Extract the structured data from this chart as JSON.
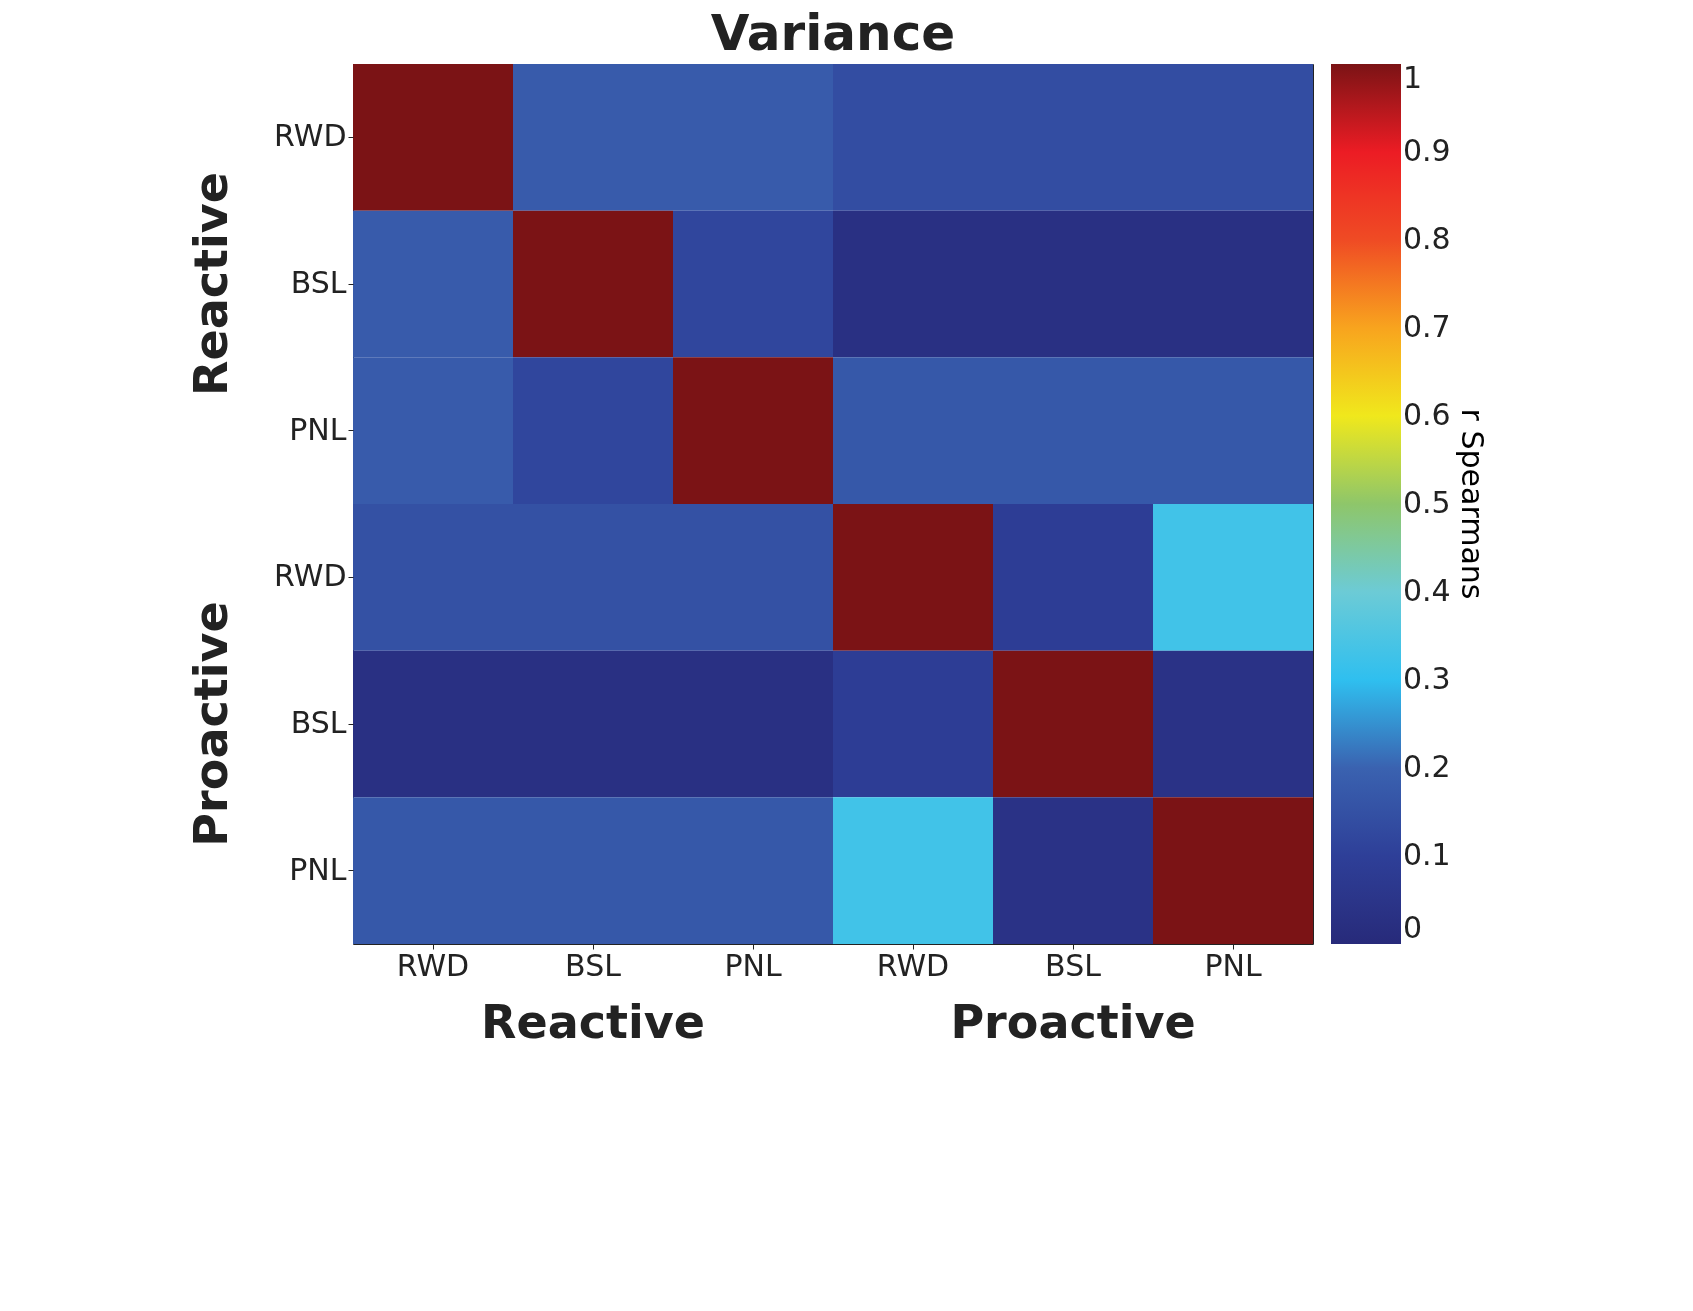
{
  "chart_data": {
    "type": "heatmap",
    "title": "Variance",
    "categories": [
      "RWD",
      "BSL",
      "PNL",
      "RWD",
      "BSL",
      "PNL"
    ],
    "y_categories": [
      "RWD",
      "BSL",
      "PNL",
      "RWD",
      "BSL",
      "PNL"
    ],
    "cells": [
      [
        1,
        0.18,
        0.18,
        0.14,
        0.14,
        0.14
      ],
      [
        0.18,
        1,
        0.12,
        0.03,
        0.03,
        0.03
      ],
      [
        0.18,
        0.12,
        1,
        0.17,
        0.17,
        0.17
      ],
      [
        0.15,
        0.15,
        0.15,
        1,
        0.09,
        0.33
      ],
      [
        0.03,
        0.03,
        0.03,
        0.09,
        1,
        0.04
      ],
      [
        0.17,
        0.17,
        0.17,
        0.33,
        0.04,
        1
      ]
    ],
    "clim": [
      0,
      1
    ],
    "cticks": [
      0,
      0.1,
      0.2,
      0.3,
      0.4,
      0.5,
      0.6,
      0.7,
      0.8,
      0.9,
      1
    ],
    "clabel": "r Spearmans",
    "annotations": [
      "Reactive",
      "Proactive",
      "Reactive",
      "Proactive"
    ]
  }
}
